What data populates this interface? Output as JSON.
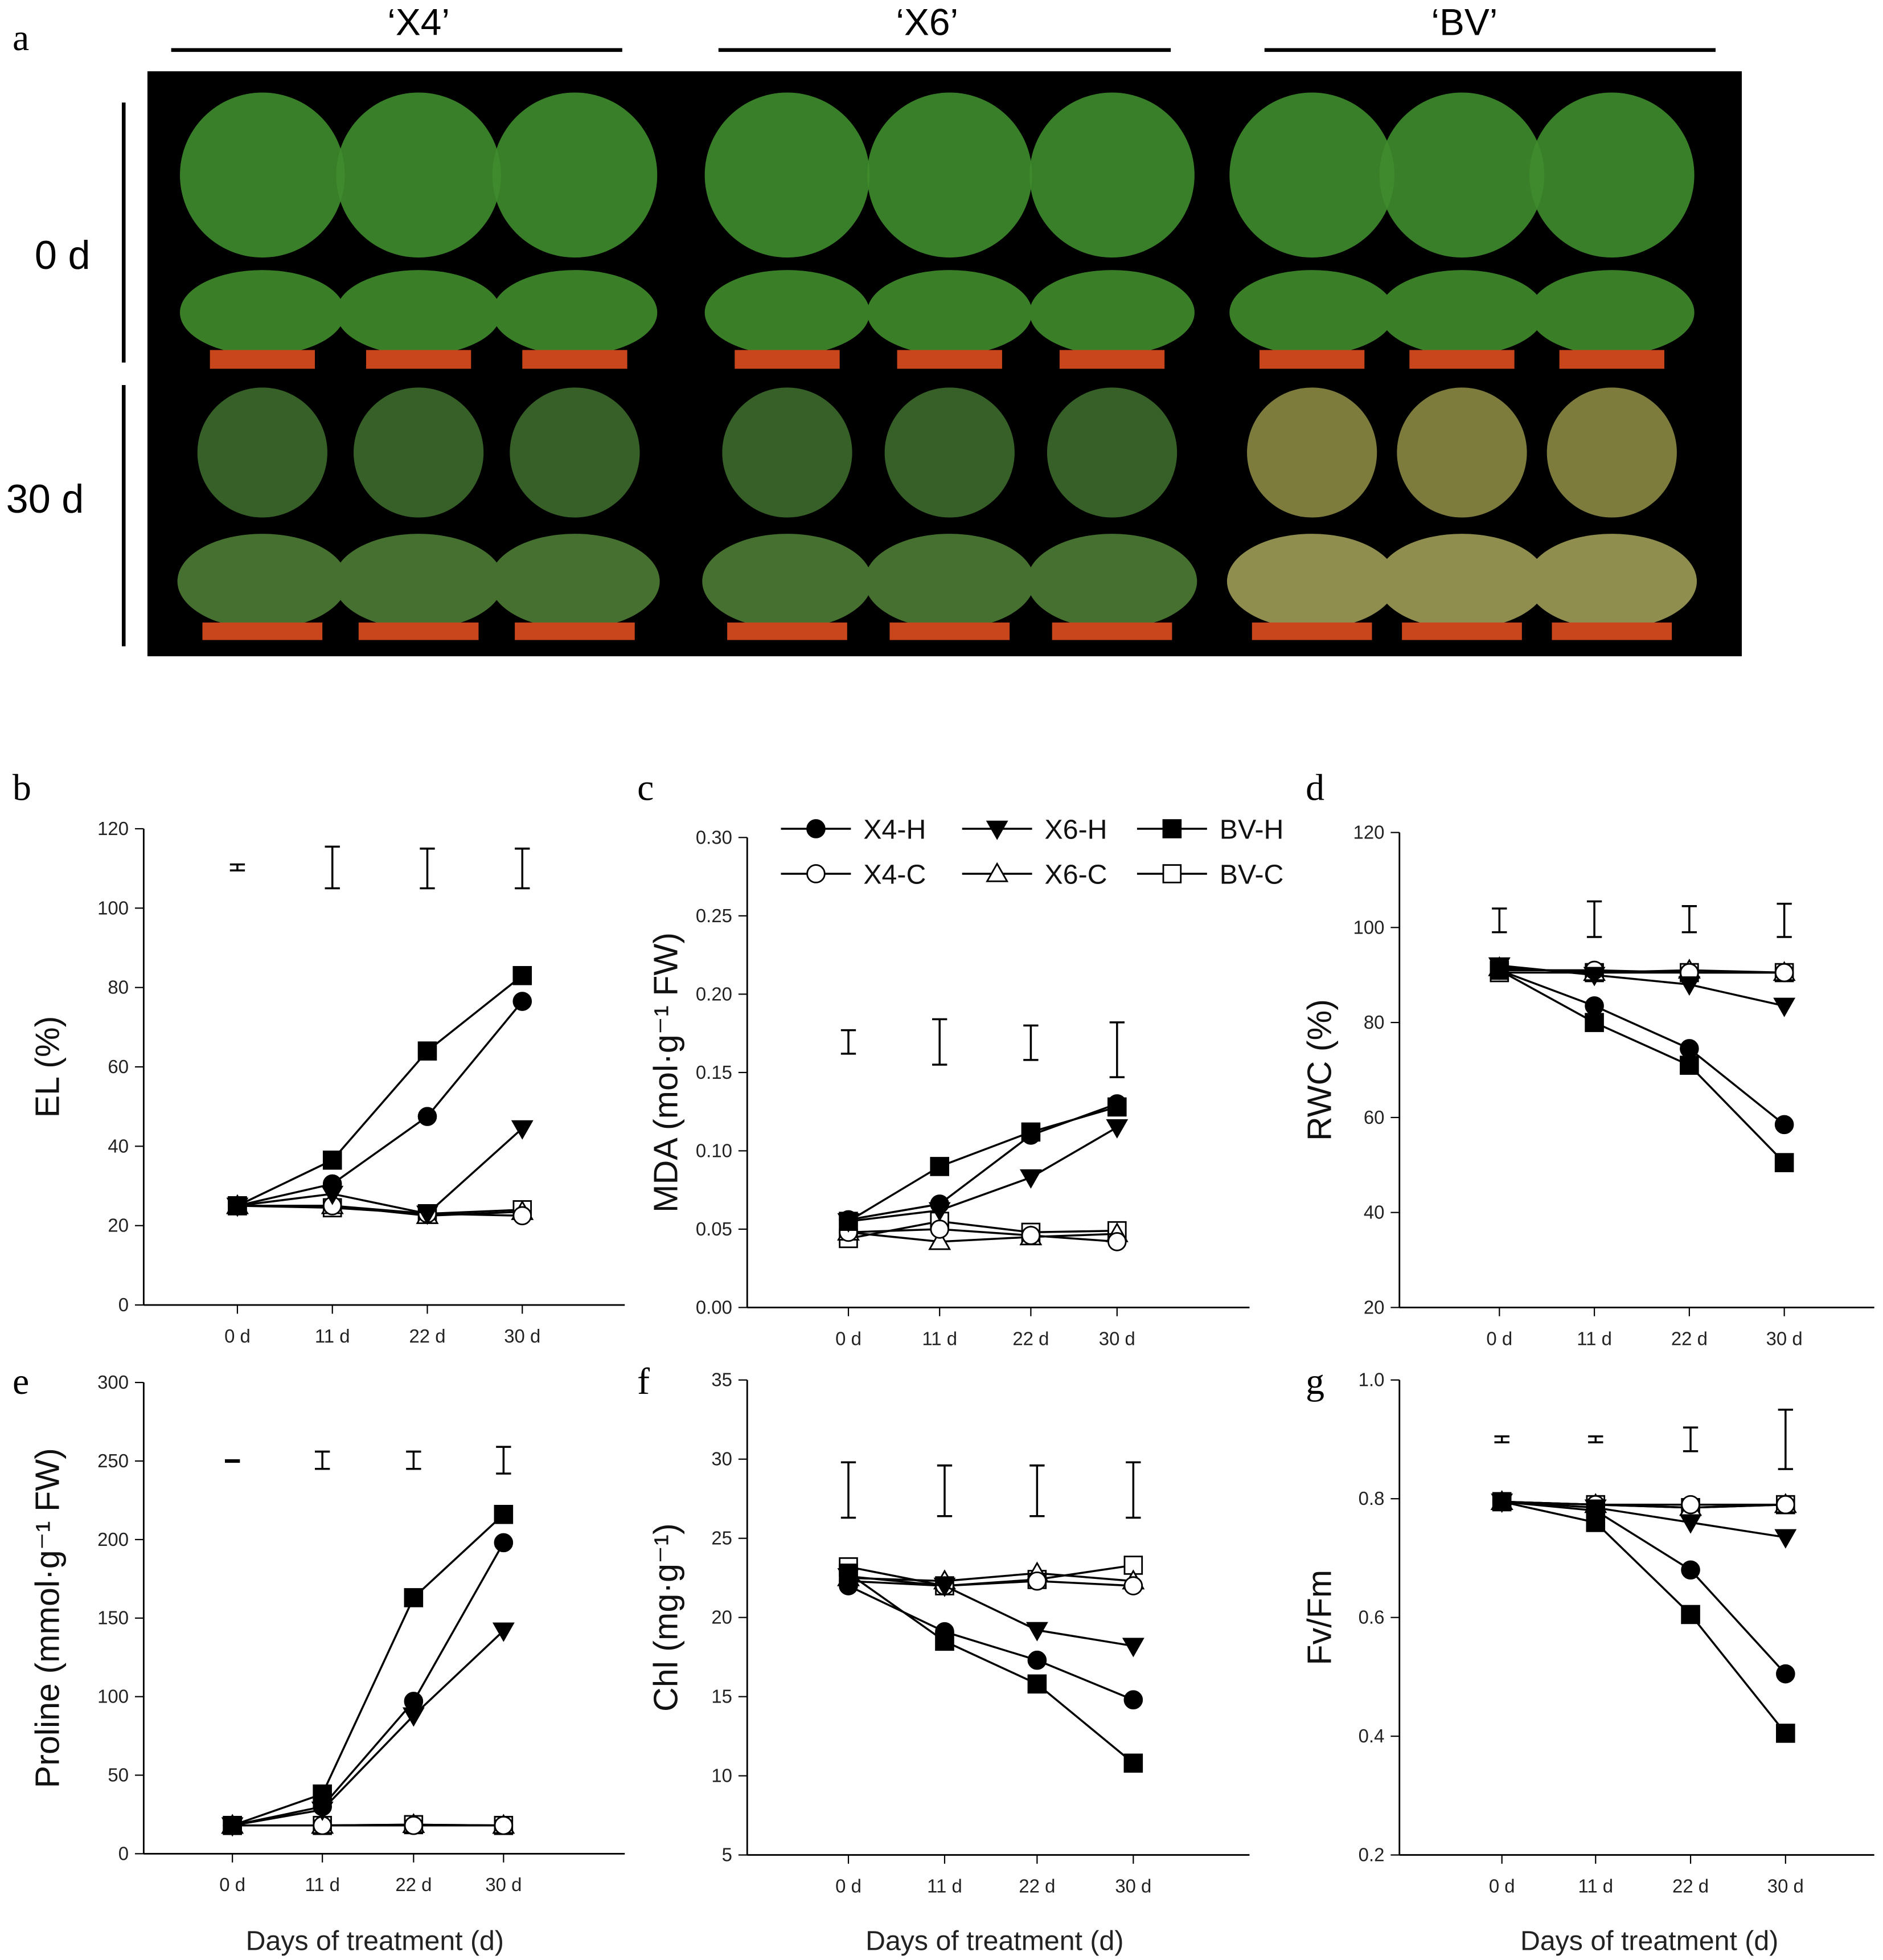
{
  "panel_a": {
    "label": "a",
    "cultivars": [
      "‘X4’",
      "‘X6’",
      "‘BV’"
    ],
    "rows": [
      "0 d",
      "30 d"
    ]
  },
  "x_axis_title": "Days of treatment (d)",
  "legend": [
    "X4-H",
    "X6-H",
    "BV-H",
    "X4-C",
    "X6-C",
    "BV-C"
  ],
  "colors": {
    "filled": "#000000",
    "open": "#ffffff",
    "photo_bg": "#000000",
    "grass_green": "#3f8c2c",
    "pot": "#c9461c"
  },
  "chart_data": [
    {
      "panel": "b",
      "type": "line",
      "ylabel": "EL (%)",
      "ylim": [
        0,
        120
      ],
      "yticks": [
        "0",
        "20",
        "40",
        "60",
        "80",
        "100",
        "120"
      ],
      "categories": [
        "0 d",
        "11 d",
        "22 d",
        "30 d"
      ],
      "series": [
        {
          "name": "X4-H",
          "marker": "circle-filled",
          "values": [
            25,
            30.5,
            47.5,
            76.5
          ]
        },
        {
          "name": "X6-H",
          "marker": "triangle-down-filled",
          "values": [
            25,
            28,
            23,
            44.5
          ]
        },
        {
          "name": "BV-H",
          "marker": "square-filled",
          "values": [
            25,
            36.5,
            64,
            83
          ]
        },
        {
          "name": "X4-C",
          "marker": "circle-open",
          "values": [
            25,
            25,
            23,
            22.5
          ]
        },
        {
          "name": "X6-C",
          "marker": "triangle-up-open",
          "values": [
            25,
            25,
            22.5,
            23.5
          ]
        },
        {
          "name": "BV-C",
          "marker": "square-open",
          "values": [
            25,
            24.5,
            23,
            24
          ]
        }
      ],
      "error_bars": [
        [
          109.5,
          111
        ],
        [
          105,
          115.5
        ],
        [
          105,
          115
        ],
        [
          105,
          115
        ]
      ]
    },
    {
      "panel": "c",
      "type": "line",
      "ylabel": "MDA (mol·g⁻¹ FW)",
      "ylim": [
        0,
        0.3
      ],
      "yticks": [
        "0.00",
        "0.05",
        "0.10",
        "0.15",
        "0.20",
        "0.25",
        "0.30"
      ],
      "categories": [
        "0 d",
        "11 d",
        "22 d",
        "30 d"
      ],
      "series": [
        {
          "name": "X4-H",
          "marker": "circle-filled",
          "values": [
            0.056,
            0.066,
            0.11,
            0.13
          ]
        },
        {
          "name": "X6-H",
          "marker": "triangle-down-filled",
          "values": [
            0.055,
            0.062,
            0.083,
            0.115
          ]
        },
        {
          "name": "BV-H",
          "marker": "square-filled",
          "values": [
            0.055,
            0.09,
            0.112,
            0.128
          ]
        },
        {
          "name": "X4-C",
          "marker": "circle-open",
          "values": [
            0.048,
            0.05,
            0.046,
            0.042
          ]
        },
        {
          "name": "X6-C",
          "marker": "triangle-up-open",
          "values": [
            0.048,
            0.042,
            0.045,
            0.047
          ]
        },
        {
          "name": "BV-C",
          "marker": "square-open",
          "values": [
            0.044,
            0.055,
            0.048,
            0.049
          ]
        }
      ],
      "error_bars": [
        [
          0.162,
          0.177
        ],
        [
          0.155,
          0.184
        ],
        [
          0.158,
          0.18
        ],
        [
          0.147,
          0.182
        ]
      ]
    },
    {
      "panel": "d",
      "type": "line",
      "ylabel": "RWC (%)",
      "ylim": [
        20,
        120
      ],
      "yticks": [
        "20",
        "40",
        "60",
        "80",
        "100",
        "120"
      ],
      "categories": [
        "0 d",
        "11 d",
        "22 d",
        "30 d"
      ],
      "series": [
        {
          "name": "X4-H",
          "marker": "circle-filled",
          "values": [
            91,
            83.5,
            74.5,
            58.5
          ]
        },
        {
          "name": "X6-H",
          "marker": "triangle-down-filled",
          "values": [
            92,
            90,
            88,
            83.5
          ]
        },
        {
          "name": "BV-H",
          "marker": "square-filled",
          "values": [
            91,
            80,
            71,
            50.5
          ]
        },
        {
          "name": "X4-C",
          "marker": "circle-open",
          "values": [
            91,
            91,
            90.5,
            90.5
          ]
        },
        {
          "name": "X6-C",
          "marker": "triangle-up-open",
          "values": [
            91.5,
            90.5,
            91,
            90.5
          ]
        },
        {
          "name": "BV-C",
          "marker": "square-open",
          "values": [
            90.5,
            90.5,
            90.5,
            90.5
          ]
        }
      ],
      "error_bars": [
        [
          99,
          104
        ],
        [
          98,
          105.5
        ],
        [
          99,
          104.5
        ],
        [
          98,
          105
        ]
      ]
    },
    {
      "panel": "e",
      "type": "line",
      "ylabel": "Proline (mmol·g⁻¹ FW)",
      "ylim": [
        0,
        300
      ],
      "yticks": [
        "0",
        "50",
        "100",
        "150",
        "200",
        "250",
        "300"
      ],
      "categories": [
        "0 d",
        "11 d",
        "22 d",
        "30 d"
      ],
      "series": [
        {
          "name": "X4-H",
          "marker": "circle-filled",
          "values": [
            18,
            30,
            97,
            198
          ]
        },
        {
          "name": "X6-H",
          "marker": "triangle-down-filled",
          "values": [
            18,
            28,
            88,
            142
          ]
        },
        {
          "name": "BV-H",
          "marker": "square-filled",
          "values": [
            18,
            38,
            163,
            216
          ]
        },
        {
          "name": "X4-C",
          "marker": "circle-open",
          "values": [
            18,
            18,
            18,
            18
          ]
        },
        {
          "name": "X6-C",
          "marker": "triangle-up-open",
          "values": [
            18,
            18,
            18.5,
            18
          ]
        },
        {
          "name": "BV-C",
          "marker": "square-open",
          "values": [
            18,
            18,
            18.5,
            18
          ]
        }
      ],
      "error_bars": [
        [
          249.5,
          250.5
        ],
        [
          245,
          256
        ],
        [
          245,
          256
        ],
        [
          242,
          259
        ]
      ]
    },
    {
      "panel": "f",
      "type": "line",
      "ylabel": "Chl (mg·g⁻¹)",
      "ylim": [
        5,
        35
      ],
      "yticks": [
        "5",
        "10",
        "15",
        "20",
        "25",
        "30",
        "35"
      ],
      "categories": [
        "0 d",
        "11 d",
        "22 d",
        "30 d"
      ],
      "series": [
        {
          "name": "X4-H",
          "marker": "circle-filled",
          "values": [
            22,
            19.1,
            17.3,
            14.8
          ]
        },
        {
          "name": "X6-H",
          "marker": "triangle-down-filled",
          "values": [
            22.6,
            22,
            19.2,
            18.2
          ]
        },
        {
          "name": "BV-H",
          "marker": "square-filled",
          "values": [
            22.8,
            18.5,
            15.8,
            10.8
          ]
        },
        {
          "name": "X4-C",
          "marker": "circle-open",
          "values": [
            22.3,
            22,
            22.3,
            22
          ]
        },
        {
          "name": "X6-C",
          "marker": "triangle-up-open",
          "values": [
            22.5,
            22.3,
            22.8,
            22.3
          ]
        },
        {
          "name": "BV-C",
          "marker": "square-open",
          "values": [
            23.2,
            22,
            22.4,
            23.3
          ]
        }
      ],
      "error_bars": [
        [
          26.3,
          29.8
        ],
        [
          26.4,
          29.6
        ],
        [
          26.4,
          29.6
        ],
        [
          26.3,
          29.8
        ]
      ]
    },
    {
      "panel": "g",
      "type": "line",
      "ylabel": "Fv/Fm",
      "ylim": [
        0.2,
        1.0
      ],
      "yticks": [
        "0.2",
        "0.4",
        "0.6",
        "0.8",
        "1.0"
      ],
      "categories": [
        "0 d",
        "11 d",
        "22 d",
        "30 d"
      ],
      "series": [
        {
          "name": "X4-H",
          "marker": "circle-filled",
          "values": [
            0.795,
            0.78,
            0.68,
            0.505
          ]
        },
        {
          "name": "X6-H",
          "marker": "triangle-down-filled",
          "values": [
            0.795,
            0.785,
            0.76,
            0.735
          ]
        },
        {
          "name": "BV-H",
          "marker": "square-filled",
          "values": [
            0.795,
            0.76,
            0.605,
            0.405
          ]
        },
        {
          "name": "X4-C",
          "marker": "circle-open",
          "values": [
            0.795,
            0.79,
            0.79,
            0.79
          ]
        },
        {
          "name": "X6-C",
          "marker": "triangle-up-open",
          "values": [
            0.795,
            0.79,
            0.785,
            0.79
          ]
        },
        {
          "name": "BV-C",
          "marker": "square-open",
          "values": [
            0.795,
            0.79,
            0.785,
            0.79
          ]
        }
      ],
      "error_bars": [
        [
          0.895,
          0.905
        ],
        [
          0.895,
          0.905
        ],
        [
          0.88,
          0.92
        ],
        [
          0.85,
          0.95
        ]
      ]
    }
  ]
}
